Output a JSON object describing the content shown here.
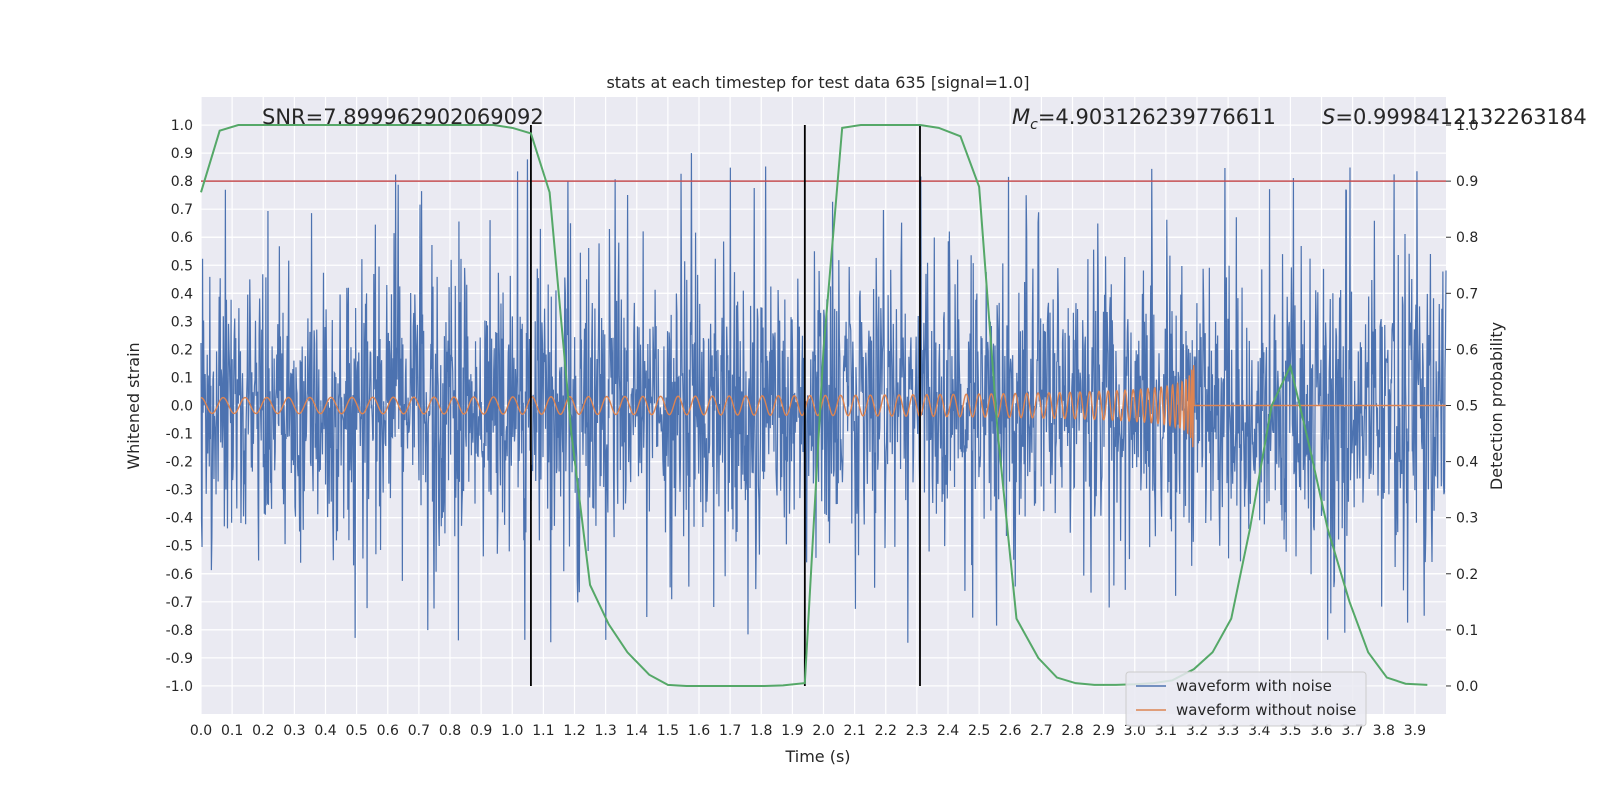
{
  "chart_data": {
    "type": "line",
    "title": "stats at each timestep for test data 635 [signal=1.0]",
    "xlabel": "Time (s)",
    "ylabel": "Whitened strain",
    "y2label": "Detection probability",
    "xlim": [
      0.0,
      4.0
    ],
    "ylim": [
      -1.1,
      1.1
    ],
    "y2lim": [
      -0.05,
      1.05
    ],
    "x_ticks": [
      "0.0",
      "0.1",
      "0.2",
      "0.3",
      "0.4",
      "0.5",
      "0.6",
      "0.7",
      "0.8",
      "0.9",
      "1.0",
      "1.1",
      "1.2",
      "1.3",
      "1.4",
      "1.5",
      "1.6",
      "1.7",
      "1.8",
      "1.9",
      "2.0",
      "2.1",
      "2.2",
      "2.3",
      "2.4",
      "2.5",
      "2.6",
      "2.7",
      "2.8",
      "2.9",
      "3.0",
      "3.1",
      "3.2",
      "3.3",
      "3.4",
      "3.5",
      "3.6",
      "3.7",
      "3.8",
      "3.9"
    ],
    "y_ticks": [
      "1.0",
      "0.9",
      "0.8",
      "0.7",
      "0.6",
      "0.5",
      "0.4",
      "0.3",
      "0.2",
      "0.1",
      "0.0",
      "-0.1",
      "-0.2",
      "-0.3",
      "-0.4",
      "-0.5",
      "-0.6",
      "-0.7",
      "-0.8",
      "-0.9",
      "-1.0"
    ],
    "y2_ticks": [
      "1.0",
      "0.9",
      "0.8",
      "0.7",
      "0.6",
      "0.5",
      "0.4",
      "0.3",
      "0.2",
      "0.1",
      "0.0"
    ],
    "grid": true,
    "legend_position": "bottom-right",
    "annotations": {
      "snr": "SNR=7.899962902069092",
      "mc_symbol": "M",
      "mc_sub": "c",
      "mc_value": "=4.903126239776611",
      "s_symbol": "S",
      "s_value": "=0.9998412132263184"
    },
    "threshold_y2": 0.9,
    "vertical_lines_x": [
      1.06,
      1.94,
      2.31
    ],
    "series": [
      {
        "name": "waveform with noise",
        "color": "#4c72b0",
        "description": "dense whitened noise, roughly +/-0.5 with peaks near +/-0.9"
      },
      {
        "name": "waveform without noise",
        "color": "#dd8452",
        "description": "chirp oscillation, amplitude ~0.03 growing to ~0.2 near 3.19 s, then zero"
      },
      {
        "name": "detection probability",
        "color": "#55a868",
        "axis": "right",
        "x": [
          0.0,
          0.06,
          0.12,
          0.19,
          0.25,
          0.31,
          0.37,
          0.44,
          0.5,
          0.56,
          0.62,
          0.69,
          0.75,
          0.81,
          0.87,
          0.94,
          1.0,
          1.06,
          1.12,
          1.19,
          1.25,
          1.31,
          1.37,
          1.44,
          1.5,
          1.56,
          1.62,
          1.69,
          1.75,
          1.81,
          1.87,
          1.94,
          2.0,
          2.06,
          2.12,
          2.19,
          2.25,
          2.31,
          2.37,
          2.44,
          2.5,
          2.56,
          2.62,
          2.69,
          2.75,
          2.81,
          2.87,
          2.94,
          3.0,
          3.06,
          3.12,
          3.19,
          3.25,
          3.31,
          3.37,
          3.44,
          3.5,
          3.56,
          3.62,
          3.69,
          3.75,
          3.81,
          3.87,
          3.94
        ],
        "values": [
          0.88,
          0.99,
          1.0,
          1.0,
          1.0,
          1.0,
          1.0,
          1.0,
          1.0,
          1.0,
          1.0,
          1.0,
          1.0,
          1.0,
          1.0,
          1.0,
          0.995,
          0.985,
          0.88,
          0.45,
          0.18,
          0.11,
          0.06,
          0.02,
          0.002,
          0.0,
          0.0,
          0.0,
          0.0,
          0.0,
          0.001,
          0.005,
          0.6,
          0.995,
          1.0,
          1.0,
          1.0,
          1.0,
          0.995,
          0.98,
          0.89,
          0.45,
          0.12,
          0.05,
          0.015,
          0.005,
          0.002,
          0.002,
          0.003,
          0.005,
          0.01,
          0.03,
          0.06,
          0.12,
          0.28,
          0.5,
          0.57,
          0.43,
          0.28,
          0.15,
          0.06,
          0.015,
          0.004,
          0.002
        ]
      }
    ]
  }
}
